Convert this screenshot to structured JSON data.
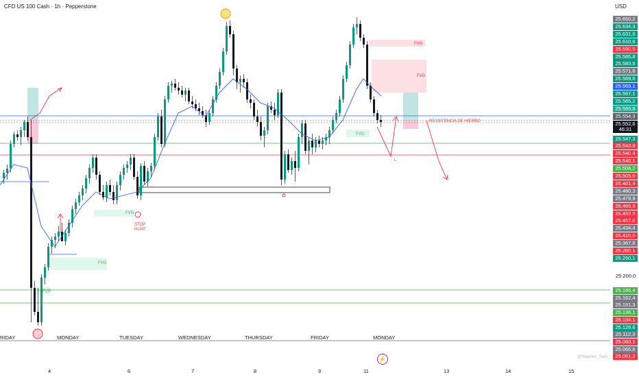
{
  "header": {
    "symbol_title": "CFD US 100 Cash · 1h · Pepperstone",
    "currency": "USD"
  },
  "x_axis": {
    "day_names": [
      "RIDAY",
      "MONDAY",
      "TUESDAY",
      "WEDNESDAY",
      "THURSDAY",
      "FRIDAY",
      "MONDAY"
    ],
    "dates": [
      "4",
      "6",
      "7",
      "8",
      "9",
      "11",
      "13",
      "14",
      "15"
    ]
  },
  "price_axis": {
    "badges": [
      {
        "label": "25.650,2",
        "color": "#787b86"
      },
      {
        "label": "25.634,3",
        "color": "#089981"
      },
      {
        "label": "25.631,0",
        "color": "#089981"
      },
      {
        "label": "25.610,6",
        "color": "#089981"
      },
      {
        "label": "25.590,9",
        "color": "#f23645"
      },
      {
        "label": "25.585,8",
        "color": "#089981"
      },
      {
        "label": "25.583,5",
        "color": "#089981"
      },
      {
        "label": "25.571,6",
        "color": "#787b86"
      },
      {
        "label": "25.569,6",
        "color": "#089981"
      },
      {
        "label": "25.569,1",
        "color": "#2962ff"
      },
      {
        "label": "25.567,1",
        "color": "#089981"
      },
      {
        "label": "25.565,2",
        "color": "#089981"
      },
      {
        "label": "25.555,8",
        "color": "#22ab94"
      },
      {
        "label": "25.554,3",
        "color": "#5d606b"
      },
      {
        "label": "25.552,6",
        "color": "#131722"
      },
      {
        "label": "25.547,3",
        "color": "#089981"
      },
      {
        "label": "25.543,8",
        "color": "#f23645"
      },
      {
        "label": "25.540,4",
        "color": "#f23645"
      },
      {
        "label": "25.540,1",
        "color": "#f23645"
      },
      {
        "label": "25.506,2",
        "color": "#4caf50"
      },
      {
        "label": "25.505,0",
        "color": "#f23645"
      },
      {
        "label": "25.481,4",
        "color": "#f23645"
      },
      {
        "label": "25.480,3",
        "color": "#787b86"
      },
      {
        "label": "25.479,9",
        "color": "#787b86"
      },
      {
        "label": "25.466,5",
        "color": "#f23645"
      },
      {
        "label": "25.459,9",
        "color": "#f23645"
      },
      {
        "label": "25.457,8",
        "color": "#f23645"
      },
      {
        "label": "25.434,4",
        "color": "#787b86"
      },
      {
        "label": "25.419,0",
        "color": "#f23645"
      },
      {
        "label": "25.367,8",
        "color": "#787b86"
      },
      {
        "label": "25.280,1",
        "color": "#f23645"
      },
      {
        "label": "25.250,1",
        "color": "#089981"
      }
    ],
    "countdown": "46:31",
    "plain_level": "25.200,0",
    "lower_badges": [
      {
        "label": "25.165,4",
        "color": "#4caf50"
      },
      {
        "label": "25.162,4",
        "color": "#787b86"
      },
      {
        "label": "25.151,3",
        "color": "#787b86"
      },
      {
        "label": "25.136,1",
        "color": "#4caf50"
      },
      {
        "label": "25.134,1",
        "color": "#f23645"
      },
      {
        "label": "25.129,6",
        "color": "#089981"
      },
      {
        "label": "25.112,3",
        "color": "#787b86"
      },
      {
        "label": "25.083,1",
        "color": "#f23645"
      },
      {
        "label": "25.066,6",
        "color": "#787b86"
      },
      {
        "label": "25.061,2",
        "color": "#f23645"
      }
    ]
  },
  "annotations": {
    "fvg": "FVG",
    "stop_hunt_line1": "STOP",
    "stop_hunt_line2": "HUNT",
    "resistance": "RESISTENCIA DE HIERRO",
    "low_marker": "L"
  },
  "watermark": "@Stephen_Sam_",
  "colors": {
    "bull": "#089981",
    "bear": "#131722",
    "wick": "#131722",
    "ma": "#2962ff",
    "green_line": "#4caf50",
    "red_line": "#f23645",
    "blue_line": "#2962ff",
    "arrow": "#f23645"
  }
}
